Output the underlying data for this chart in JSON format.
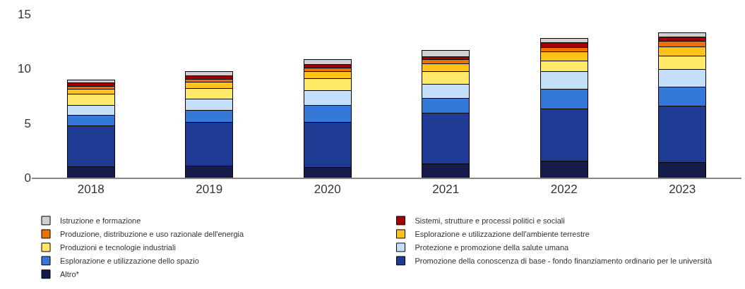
{
  "chart_data": {
    "type": "bar",
    "stacked": true,
    "categories": [
      "2018",
      "2019",
      "2020",
      "2021",
      "2022",
      "2023"
    ],
    "ylim": [
      0,
      15
    ],
    "yticks": [
      0,
      5,
      10,
      15
    ],
    "grid": false,
    "legend": "bottom",
    "series": [
      {
        "name": "Altro*",
        "color": "#161c4a",
        "values": [
          1.03,
          1.08,
          0.95,
          1.29,
          1.49,
          1.36
        ]
      },
      {
        "name": "Promozione della conoscenza di base - fondo finanziamento ordinario per le università",
        "color": "#1f3a93",
        "values": [
          3.75,
          3.98,
          4.14,
          4.64,
          4.84,
          5.21
        ]
      },
      {
        "name": "Esplorazione e utilizzazione dello spazio",
        "color": "#3579d8",
        "values": [
          0.97,
          1.13,
          1.55,
          1.37,
          1.79,
          1.77
        ]
      },
      {
        "name": "Protezione e promozione della salute umana",
        "color": "#c5dffa",
        "values": [
          0.86,
          1.01,
          1.33,
          1.28,
          1.62,
          1.59
        ]
      },
      {
        "name": "Produzioni e tecnologie industriali",
        "color": "#ffe966",
        "values": [
          1.02,
          0.99,
          1.1,
          1.12,
          0.99,
          1.25
        ]
      },
      {
        "name": "Esplorazione e utilizzazione dell'ambiente terrestre",
        "color": "#ffc21c",
        "values": [
          0.47,
          0.58,
          0.63,
          0.73,
          0.82,
          0.82
        ]
      },
      {
        "name": "Produzione, distribuzione e uso razionale dell'energia",
        "color": "#ee7203",
        "values": [
          0.3,
          0.28,
          0.34,
          0.41,
          0.41,
          0.5
        ]
      },
      {
        "name": "Sistemi, strutture e processi politici e sociali",
        "color": "#a00000",
        "values": [
          0.28,
          0.32,
          0.32,
          0.28,
          0.43,
          0.41
        ]
      },
      {
        "name": "Istruzione e formazione",
        "color": "#d0d0d0",
        "values": [
          0.28,
          0.39,
          0.44,
          0.52,
          0.37,
          0.39
        ]
      }
    ]
  }
}
